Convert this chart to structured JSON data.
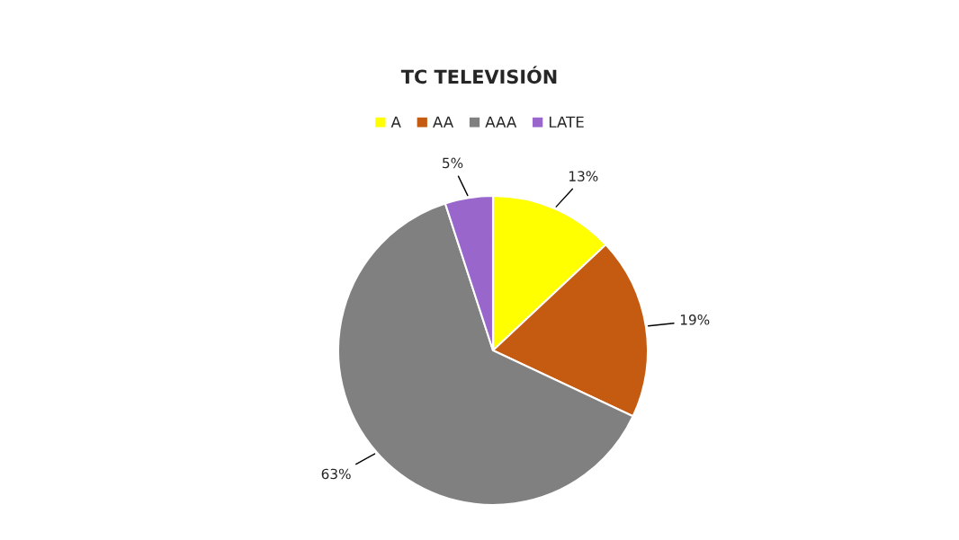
{
  "chart_data": {
    "type": "pie",
    "title": "TC TELEVISIÓN",
    "categories": [
      "A",
      "AA",
      "AAA",
      "LATE"
    ],
    "values": [
      13,
      19,
      63,
      5
    ],
    "value_labels": [
      "13%",
      "19%",
      "63%",
      "5%"
    ],
    "colors": [
      "#ffff00",
      "#c55a11",
      "#808080",
      "#9966cc"
    ],
    "legend": "top"
  }
}
